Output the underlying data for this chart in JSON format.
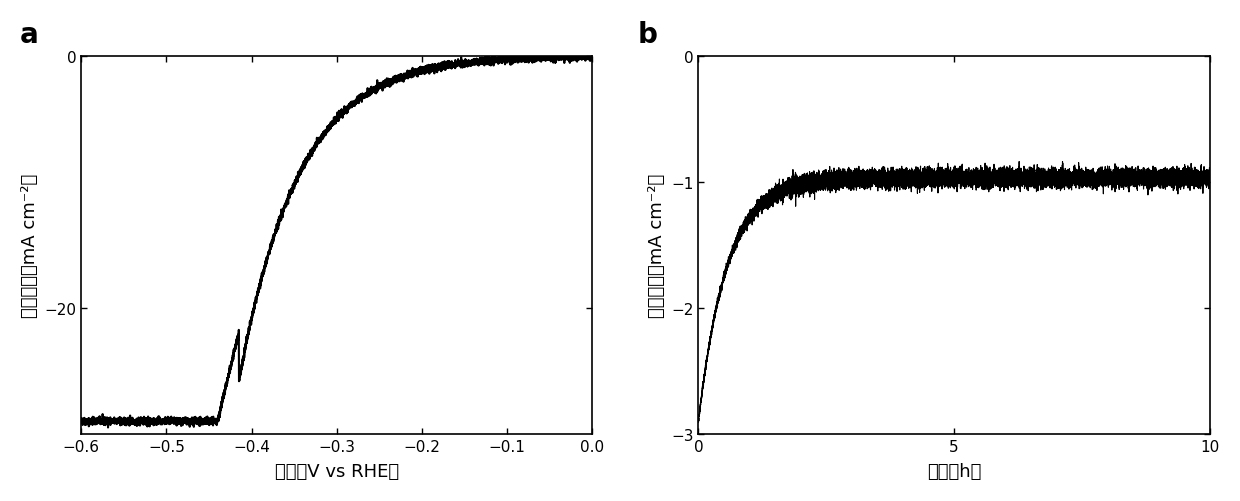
{
  "panel_a": {
    "xlabel": "电压（V vs RHE）",
    "ylabel": "电流密度（mA cm⁻²）",
    "xlim": [
      -0.6,
      0.0
    ],
    "ylim": [
      -30,
      0
    ],
    "xticks": [
      -0.6,
      -0.5,
      -0.4,
      -0.3,
      -0.2,
      -0.1,
      0.0
    ],
    "yticks": [
      -20,
      0
    ],
    "label": "a",
    "line_color": "#000000"
  },
  "panel_b": {
    "xlabel": "时间（h）",
    "ylabel": "电流密度（mA cm⁻²）",
    "xlim": [
      0,
      10
    ],
    "ylim": [
      -3,
      0
    ],
    "xticks": [
      0,
      5,
      10
    ],
    "yticks": [
      -3,
      -2,
      -1,
      0
    ],
    "label": "b",
    "line_color": "#000000"
  },
  "background_color": "#ffffff",
  "line_width": 1.5,
  "font_size_label": 13,
  "font_size_tick": 11,
  "font_size_panel_label": 20
}
